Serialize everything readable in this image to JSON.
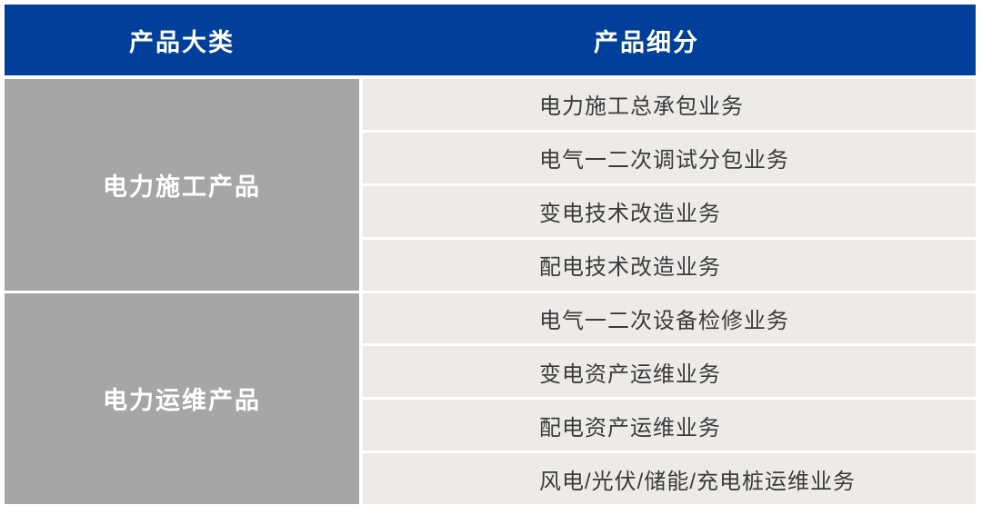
{
  "table": {
    "header": {
      "col1_label": "产品大类",
      "col2_label": "产品细分"
    },
    "groups": [
      {
        "category": "电力施工产品",
        "items": [
          "电力施工总承包业务",
          "电气一二次调试分包业务",
          "变电技术改造业务",
          "配电技术改造业务"
        ]
      },
      {
        "category": "电力运维产品",
        "items": [
          "电气一二次设备检修业务",
          "变电资产运维业务",
          "配电资产运维业务",
          "风电/光伏/储能/充电桩运维业务"
        ]
      }
    ],
    "colors": {
      "header_bg": "#00409A",
      "category_bg": "#A6A6A6",
      "item_bg": "#ECEBE9",
      "header_text": "#FFFFFF",
      "item_text": "#3B3B3B",
      "page_bg": "#FFFFFF"
    }
  }
}
